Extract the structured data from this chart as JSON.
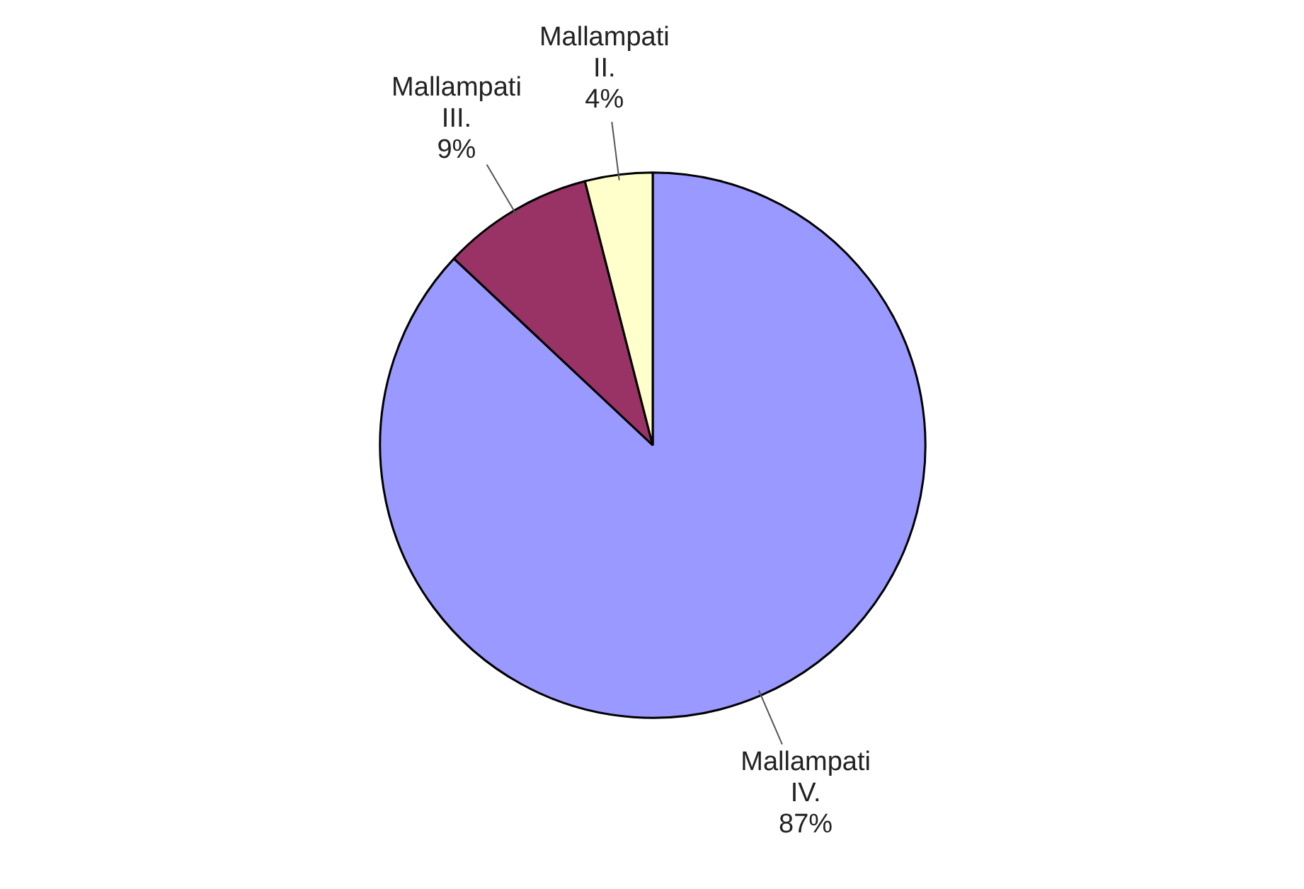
{
  "chart_data": {
    "type": "pie",
    "categories": [
      "Mallampati IV.",
      "Mallampati III.",
      "Mallampati II."
    ],
    "values": [
      87,
      9,
      4
    ],
    "value_labels": [
      "87%",
      "9%",
      "4%"
    ],
    "colors": [
      "#9999ff",
      "#993366",
      "#ffffcc"
    ]
  }
}
